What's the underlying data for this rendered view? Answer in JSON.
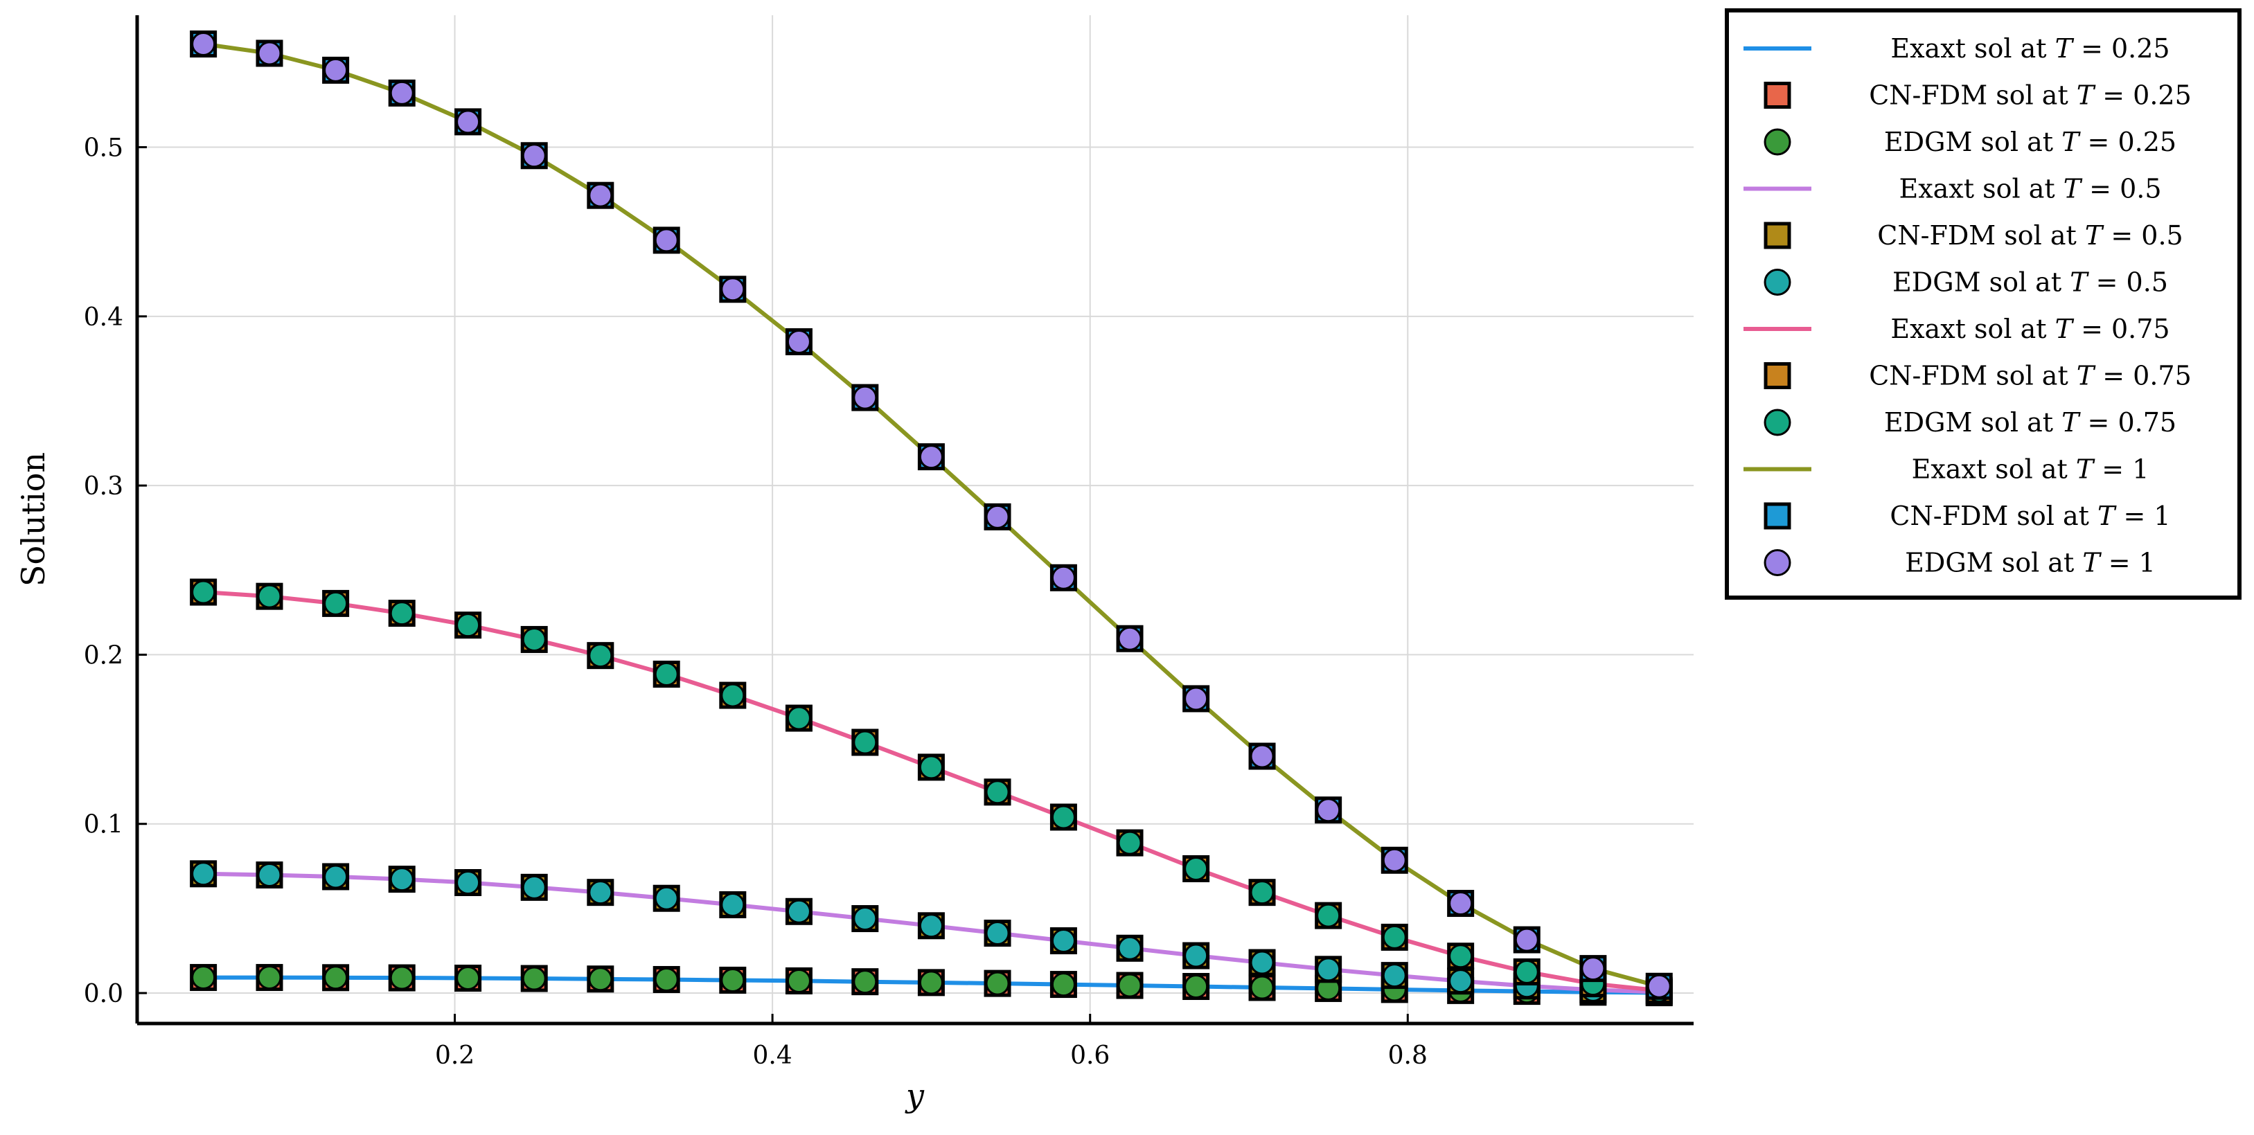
{
  "chart_data": {
    "type": "line",
    "title": "",
    "xlabel": "y",
    "ylabel": "Solution",
    "xlim": [
      0.0,
      0.98
    ],
    "ylim": [
      -0.018,
      0.578
    ],
    "grid": true,
    "legend_position": "outside-top-right",
    "x_ticks": [
      0.2,
      0.4,
      0.6,
      0.8
    ],
    "x_tick_labels": [
      "0.2",
      "0.4",
      "0.6",
      "0.8"
    ],
    "y_ticks": [
      0.0,
      0.1,
      0.2,
      0.3,
      0.4,
      0.5
    ],
    "y_tick_labels": [
      "0.0",
      "0.1",
      "0.2",
      "0.3",
      "0.4",
      "0.5"
    ],
    "x": [
      0.0417,
      0.0833,
      0.125,
      0.1667,
      0.2083,
      0.25,
      0.2917,
      0.3333,
      0.375,
      0.4167,
      0.4583,
      0.5,
      0.5417,
      0.5833,
      0.625,
      0.6667,
      0.7083,
      0.75,
      0.7917,
      0.8333,
      0.875,
      0.9167,
      0.9583
    ],
    "groups": [
      {
        "T": "0.25",
        "line_color": "#1f8fe6",
        "square_color": "#e8664a",
        "circle_color": "#3a9a3a",
        "values": [
          0.0092,
          0.0092,
          0.0091,
          0.009,
          0.0088,
          0.0086,
          0.0083,
          0.008,
          0.0076,
          0.0072,
          0.0067,
          0.0062,
          0.0057,
          0.0051,
          0.0045,
          0.0039,
          0.0033,
          0.0027,
          0.0021,
          0.0015,
          0.001,
          0.0005,
          0.0002
        ]
      },
      {
        "T": "0.5",
        "line_color": "#c27ce0",
        "square_color": "#b08a18",
        "circle_color": "#1ea8a8",
        "values": [
          0.0705,
          0.0698,
          0.0688,
          0.0673,
          0.0653,
          0.0625,
          0.0595,
          0.056,
          0.0522,
          0.0482,
          0.044,
          0.0398,
          0.0354,
          0.0309,
          0.0265,
          0.0221,
          0.018,
          0.014,
          0.0104,
          0.0071,
          0.0042,
          0.0019,
          0.0006
        ]
      },
      {
        "T": "0.75",
        "line_color": "#e85c92",
        "square_color": "#c8821e",
        "circle_color": "#14a882",
        "values": [
          0.237,
          0.2345,
          0.2303,
          0.2245,
          0.2175,
          0.209,
          0.1995,
          0.1885,
          0.176,
          0.1625,
          0.1482,
          0.1335,
          0.1188,
          0.104,
          0.0888,
          0.0735,
          0.0595,
          0.0458,
          0.033,
          0.0218,
          0.0125,
          0.0055,
          0.0015
        ]
      },
      {
        "T": "1",
        "line_color": "#8a9620",
        "square_color": "#1e9ad6",
        "circle_color": "#9b82e6",
        "values": [
          0.561,
          0.5555,
          0.5455,
          0.532,
          0.515,
          0.495,
          0.4715,
          0.445,
          0.416,
          0.385,
          0.352,
          0.317,
          0.2815,
          0.2455,
          0.2095,
          0.174,
          0.14,
          0.1082,
          0.0785,
          0.053,
          0.0315,
          0.0145,
          0.004
        ]
      }
    ],
    "legend": [
      {
        "kind": "line",
        "group": 0,
        "prefix": "Exaxt sol at ",
        "var": "T",
        "eq": " = ",
        "val": "0.25"
      },
      {
        "kind": "square",
        "group": 0,
        "prefix": "CN-FDM sol at ",
        "var": "T",
        "eq": " = ",
        "val": "0.25"
      },
      {
        "kind": "circle",
        "group": 0,
        "prefix": "EDGM sol at ",
        "var": "T",
        "eq": " = ",
        "val": "0.25"
      },
      {
        "kind": "line",
        "group": 1,
        "prefix": "Exaxt sol at ",
        "var": "T",
        "eq": " = ",
        "val": "0.5"
      },
      {
        "kind": "square",
        "group": 1,
        "prefix": "CN-FDM sol at ",
        "var": "T",
        "eq": " = ",
        "val": "0.5"
      },
      {
        "kind": "circle",
        "group": 1,
        "prefix": "EDGM sol at ",
        "var": "T",
        "eq": " = ",
        "val": "0.5"
      },
      {
        "kind": "line",
        "group": 2,
        "prefix": "Exaxt sol at ",
        "var": "T",
        "eq": " = ",
        "val": "0.75"
      },
      {
        "kind": "square",
        "group": 2,
        "prefix": "CN-FDM sol at ",
        "var": "T",
        "eq": " = ",
        "val": "0.75"
      },
      {
        "kind": "circle",
        "group": 2,
        "prefix": "EDGM sol at ",
        "var": "T",
        "eq": " = ",
        "val": "0.75"
      },
      {
        "kind": "line",
        "group": 3,
        "prefix": "Exaxt sol at ",
        "var": "T",
        "eq": " = ",
        "val": "1"
      },
      {
        "kind": "square",
        "group": 3,
        "prefix": "CN-FDM sol at ",
        "var": "T",
        "eq": " = ",
        "val": "1"
      },
      {
        "kind": "circle",
        "group": 3,
        "prefix": "EDGM sol at ",
        "var": "T",
        "eq": " = ",
        "val": "1"
      }
    ]
  }
}
